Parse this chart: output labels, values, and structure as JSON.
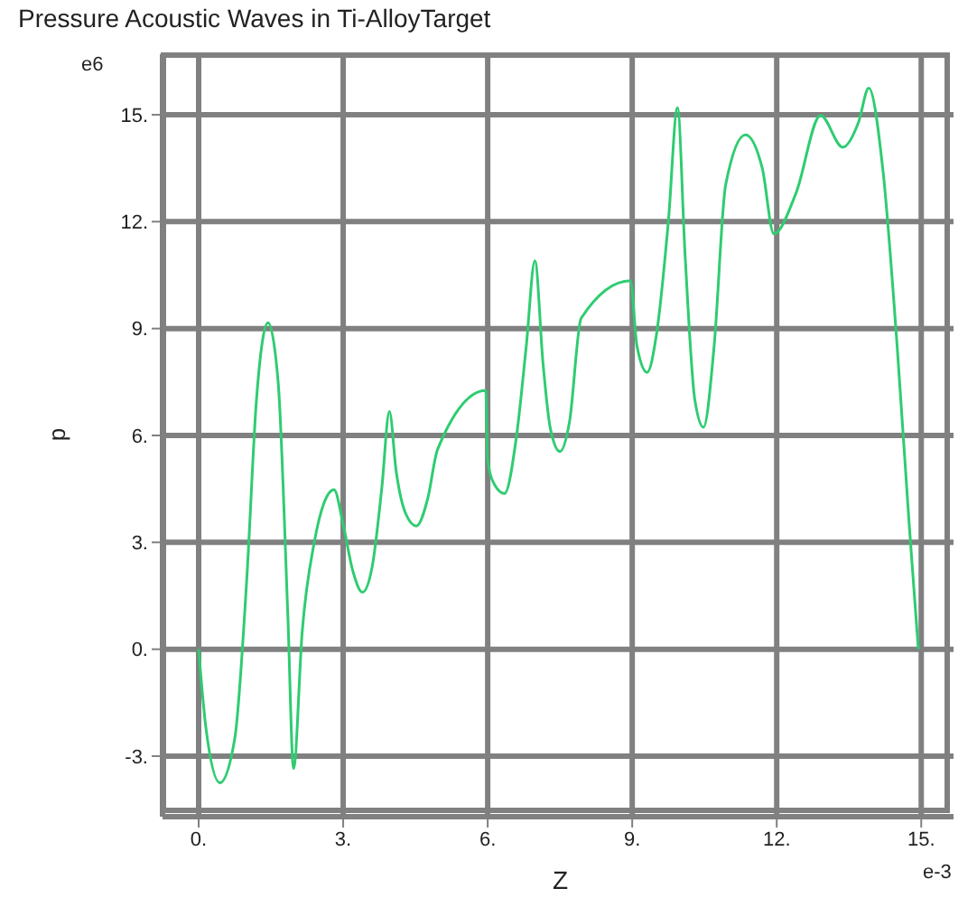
{
  "chart_data": {
    "type": "line",
    "title": "Pressure Acoustic Waves in Ti-AlloyTarget",
    "xlabel": "Z",
    "ylabel": "p",
    "annotations": [
      "e6",
      "e-3"
    ],
    "xlim": [
      -0.75,
      15.67
    ],
    "ylim": [
      -4.7,
      16.7
    ],
    "xticks": [
      {
        "value": 0,
        "label": "0."
      },
      {
        "value": 3,
        "label": "3."
      },
      {
        "value": 6,
        "label": "6."
      },
      {
        "value": 9,
        "label": "9."
      },
      {
        "value": 12,
        "label": "12."
      },
      {
        "value": 15,
        "label": "15."
      }
    ],
    "yticks": [
      {
        "value": -3,
        "label": "-3."
      },
      {
        "value": 0,
        "label": "0."
      },
      {
        "value": 3,
        "label": "3."
      },
      {
        "value": 6,
        "label": "6."
      },
      {
        "value": 9,
        "label": "9."
      },
      {
        "value": 12,
        "label": "12."
      },
      {
        "value": 15,
        "label": "15."
      }
    ],
    "grid": true,
    "legend": false,
    "series": [
      {
        "color": "#2ecc71",
        "x": [
          0,
          0.15,
          0.44,
          0.75,
          1.0,
          1.2,
          1.44,
          1.65,
          1.85,
          1.97,
          2.15,
          2.4,
          2.6,
          2.81,
          3.0,
          3.2,
          3.4,
          3.6,
          3.8,
          3.96,
          4.1,
          4.3,
          4.52,
          4.75,
          4.96,
          5.96,
          6.0,
          6.15,
          6.35,
          6.6,
          6.8,
          6.98,
          7.15,
          7.3,
          7.5,
          7.7,
          7.94,
          8.96,
          9.1,
          9.31,
          9.5,
          9.75,
          9.94,
          10.1,
          10.3,
          10.48,
          10.7,
          10.94,
          11.35,
          11.7,
          11.94,
          12.4,
          12.91,
          13.37,
          13.7,
          13.91,
          14.2,
          14.5,
          14.75,
          14.94
        ],
        "values": [
          0,
          -2.2,
          -3.75,
          -2.5,
          2,
          7,
          9.16,
          7.5,
          1,
          -3.35,
          0.5,
          3,
          4.1,
          4.48,
          3.5,
          2.2,
          1.6,
          2.3,
          4.5,
          6.67,
          5.0,
          3.8,
          3.46,
          4.2,
          5.61,
          7.26,
          5.3,
          4.6,
          4.37,
          6.0,
          8.5,
          10.9,
          8.0,
          6.2,
          5.55,
          6.4,
          9.29,
          10.34,
          8.5,
          7.77,
          8.8,
          12.0,
          15.2,
          11,
          7.0,
          6.23,
          8.5,
          13.04,
          14.44,
          13.5,
          11.66,
          12.8,
          14.98,
          14.09,
          14.8,
          15.75,
          13.5,
          8.5,
          3.5,
          0
        ]
      }
    ]
  }
}
